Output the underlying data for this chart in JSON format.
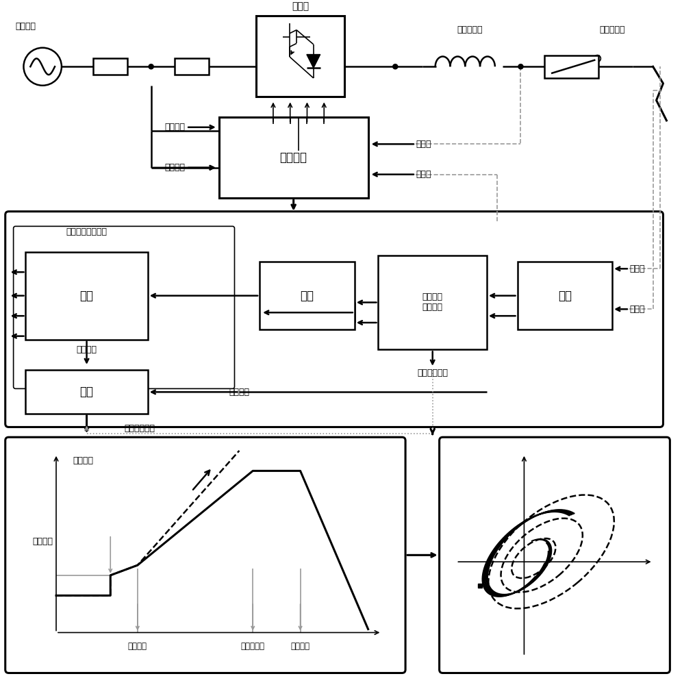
{
  "bg_color": "#ffffff",
  "line_color": "#000000",
  "gray_color": "#999999",
  "fig_width": 9.96,
  "fig_height": 10.0,
  "labels": {
    "ac_grid": "交流电网",
    "converter": "换流器",
    "smoothing_reactor": "平波电抗器",
    "dc_breaker": "直流断路器",
    "ac_voltage": "交流电压",
    "ac_current": "交流电流",
    "control_system": "控制系统",
    "operating_value1": "运行值",
    "reference_value1": "参考值",
    "dc_current_suppress": "直流电流抑制控制",
    "modulation": "调制",
    "inner_loop": "内环",
    "bridge_arm_suppress": "桥臂电流\n抑制控制",
    "outer_loop": "外环",
    "operating_value2": "运行值",
    "reference_value2": "参考值",
    "switch_coeff": "开关系数",
    "dc_current_feed": "直流电流",
    "calculation": "计算",
    "ctrl_start1": "控制启动信号",
    "ctrl_start2": "控制启动信号",
    "dc_current_axis": "直流电流",
    "fault_occurs": "故障发生",
    "control_trigger": "控制触发",
    "breaker_open": "断路器开断",
    "fault_isolation": "故障隔离"
  }
}
